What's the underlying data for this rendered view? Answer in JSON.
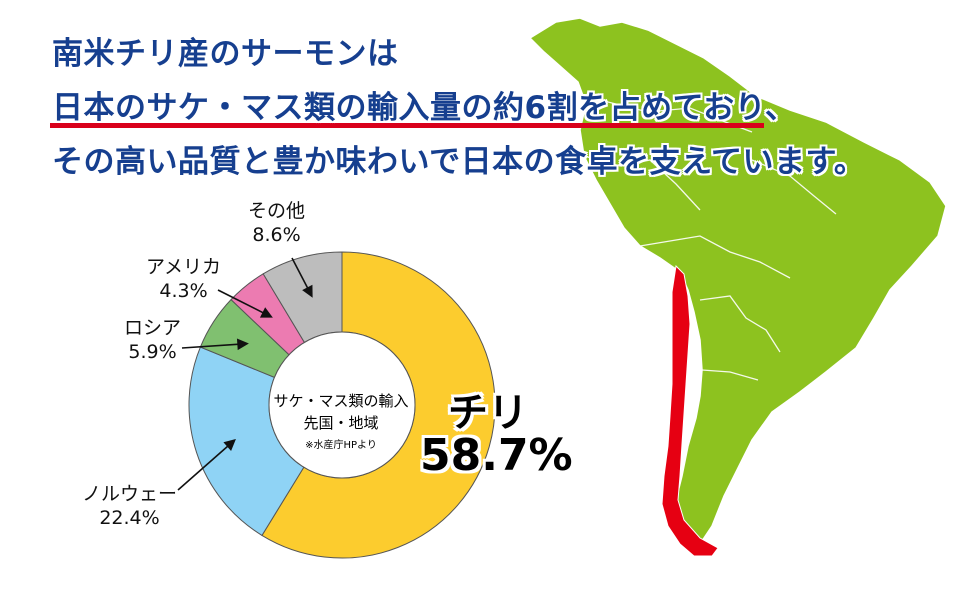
{
  "headline": {
    "line1": "南米チリ産のサーモンは",
    "line2": "日本のサケ・マス類の輸入量の約6割を占めており、",
    "line3": "その高い品質と豊か味わいで日本の食卓を支えています。"
  },
  "colors": {
    "headline": "#163f8f",
    "underline": "#d9001b",
    "continent": "#8dc21f",
    "chile": "#e60012"
  },
  "chart_data": {
    "type": "pie",
    "title": "サケ・マス類の輸入先国・地域",
    "source_note": "※水産庁HPより",
    "slices": [
      {
        "label": "チリ",
        "value": 58.7,
        "display": "58.7%",
        "color": "#fccc2e"
      },
      {
        "label": "ノルウェー",
        "value": 22.4,
        "display": "22.4%",
        "color": "#8fd3f5"
      },
      {
        "label": "ロシア",
        "value": 5.9,
        "display": "5.9%",
        "color": "#80c070"
      },
      {
        "label": "アメリカ",
        "value": 4.3,
        "display": "4.3%",
        "color": "#ec7bb1"
      },
      {
        "label": "その他",
        "value": 8.6,
        "display": "8.6%",
        "color": "#bdbdbd"
      }
    ]
  }
}
